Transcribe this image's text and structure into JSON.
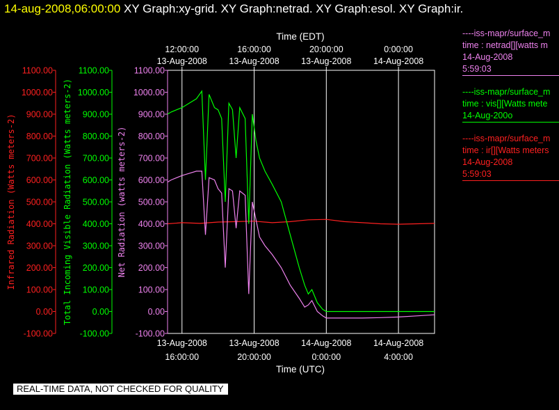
{
  "header": {
    "timestamp": "14-aug-2008,06:00:00",
    "graph_titles": "XY Graph:xy-grid.  XY Graph:netrad.  XY Graph:esol.  XY Graph:ir."
  },
  "footer": {
    "notice": "REAL-TIME DATA, NOT CHECKED FOR QUALITY"
  },
  "colors": {
    "infrared": "#ff2020",
    "visible": "#00ff00",
    "net": "#ee82ee",
    "grid": "#ffffff"
  },
  "legend": [
    {
      "title": "----iss-mapr/surface_m",
      "desc": "time : netrad[][watts m",
      "date": "14-Aug-2008",
      "time": "5:59:03",
      "color": "#ee82ee"
    },
    {
      "title": "----iss-mapr/surface_m",
      "desc": "time : vis[][Watts mete",
      "date": "14-Aug-200o",
      "time": "",
      "color": "#00ff00"
    },
    {
      "title": "----iss-mapr/surface_m",
      "desc": "time : ir[][Watts meters",
      "date": "14-Aug-2008",
      "time": "5:59:03",
      "color": "#ff2020"
    }
  ],
  "chart_data": {
    "type": "line",
    "x_top_label": "Time (EDT)",
    "x_bottom_label": "Time (UTC)",
    "x_range_utc_hours": [
      15.2,
      30.0
    ],
    "x_top_ticks": [
      {
        "hour_utc": 16,
        "line1": "12:00:00",
        "line2": "13-Aug-2008"
      },
      {
        "hour_utc": 20,
        "line1": "16:00:00",
        "line2": "13-Aug-2008"
      },
      {
        "hour_utc": 24,
        "line1": "20:00:00",
        "line2": "13-Aug-2008"
      },
      {
        "hour_utc": 28,
        "line1": "0:00:00",
        "line2": "14-Aug-2008"
      }
    ],
    "x_bottom_ticks": [
      {
        "hour_utc": 16,
        "line1": "13-Aug-2008",
        "line2": "16:00:00"
      },
      {
        "hour_utc": 20,
        "line1": "13-Aug-2008",
        "line2": "20:00:00"
      },
      {
        "hour_utc": 24,
        "line1": "14-Aug-2008",
        "line2": "0:00:00"
      },
      {
        "hour_utc": 28,
        "line1": "14-Aug-2008",
        "line2": "4:00:00"
      }
    ],
    "ylim": [
      -100,
      1100
    ],
    "y_ticks": [
      "-100.00",
      "0.00",
      "100.00",
      "200.00",
      "300.00",
      "400.00",
      "500.00",
      "600.00",
      "700.00",
      "800.00",
      "900.00",
      "1000.00",
      "1100.00"
    ],
    "axes": [
      {
        "label": "Infrared Radiation (Watts meters-2)",
        "color": "#ff2020"
      },
      {
        "label": "Total Incoming Visible Radiation (Watts meters-2)",
        "color": "#00ff00"
      },
      {
        "label": "Net Radiation (watts meters-2)",
        "color": "#ee82ee"
      }
    ],
    "series": [
      {
        "color": "#ff2020",
        "x": [
          15.2,
          16,
          17,
          18,
          19,
          20,
          21,
          22,
          23,
          24,
          25,
          26,
          27,
          28,
          29,
          30
        ],
        "y": [
          400,
          405,
          402,
          408,
          410,
          412,
          405,
          410,
          418,
          420,
          410,
          405,
          400,
          398,
          400,
          402
        ]
      },
      {
        "color": "#00ff00",
        "x": [
          15.2,
          15.4,
          15.7,
          16,
          16.4,
          16.8,
          17.1,
          17.3,
          17.5,
          17.8,
          18.0,
          18.2,
          18.4,
          18.6,
          18.8,
          19.0,
          19.2,
          19.5,
          19.7,
          19.9,
          20.1,
          20.3,
          20.6,
          21.0,
          21.5,
          22.0,
          22.5,
          22.8,
          23.0,
          23.2,
          23.5,
          23.8,
          24.0,
          25,
          26,
          27,
          28,
          29,
          30
        ],
        "y": [
          900,
          910,
          920,
          930,
          950,
          970,
          1005,
          600,
          990,
          930,
          920,
          880,
          500,
          950,
          920,
          700,
          930,
          880,
          400,
          900,
          780,
          700,
          640,
          580,
          500,
          350,
          200,
          120,
          80,
          100,
          40,
          10,
          0,
          0,
          0,
          0,
          0,
          0,
          0
        ]
      },
      {
        "color": "#ee82ee",
        "x": [
          15.2,
          15.4,
          15.7,
          16,
          16.4,
          16.8,
          17.1,
          17.3,
          17.5,
          17.8,
          18.0,
          18.2,
          18.4,
          18.6,
          18.8,
          19.0,
          19.2,
          19.5,
          19.7,
          19.9,
          20.1,
          20.3,
          20.6,
          21.0,
          21.5,
          22.0,
          22.5,
          22.8,
          23.0,
          23.2,
          23.5,
          23.8,
          24.0,
          25,
          26,
          27,
          28,
          29,
          30
        ],
        "y": [
          590,
          600,
          610,
          620,
          630,
          640,
          640,
          350,
          610,
          600,
          560,
          540,
          200,
          560,
          550,
          380,
          550,
          530,
          80,
          500,
          420,
          340,
          300,
          260,
          200,
          120,
          60,
          20,
          30,
          50,
          0,
          -20,
          -30,
          -30,
          -30,
          -28,
          -25,
          -20,
          -15
        ]
      }
    ]
  }
}
